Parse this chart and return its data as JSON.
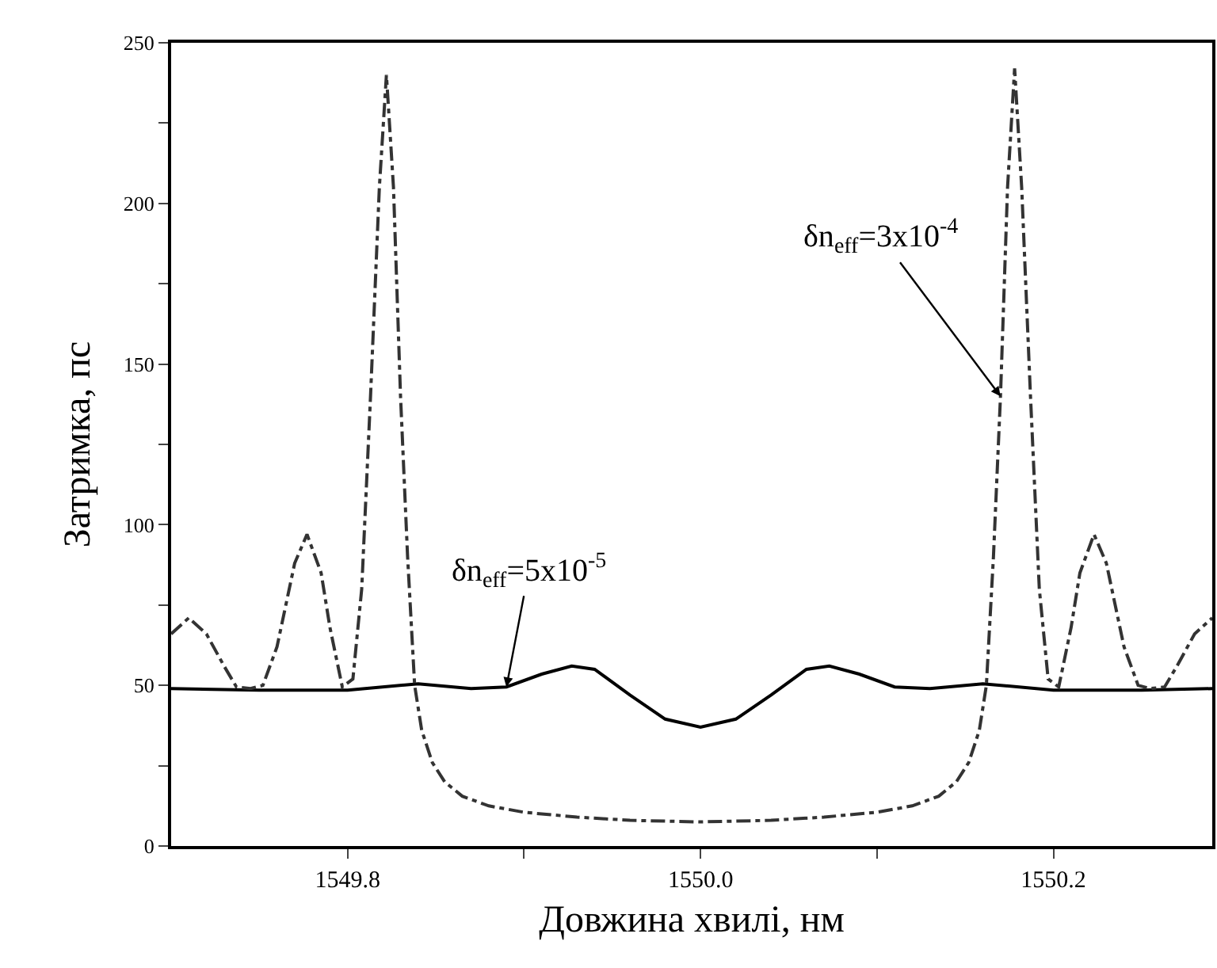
{
  "chart_data": {
    "type": "line",
    "xlabel": "Довжина хвилі, нм",
    "ylabel": "Затримка, пс",
    "xlim": [
      1549.7,
      1550.29
    ],
    "ylim": [
      0,
      250
    ],
    "xticks": [
      1549.8,
      {
        "value": 1549.9,
        "label": null
      },
      {
        "value": 1550,
        "label": "1550.0"
      },
      {
        "value": 1550.1,
        "label": null
      },
      1550.2
    ],
    "yticks": [
      0,
      {
        "value": 25,
        "label": null
      },
      50,
      {
        "value": 75,
        "label": null
      },
      100,
      {
        "value": 125,
        "label": null
      },
      150,
      {
        "value": 175,
        "label": null
      },
      200,
      {
        "value": 225,
        "label": null
      },
      250
    ],
    "grid": false,
    "marker": "none",
    "series": [
      {
        "color": "#000000",
        "line_style": "solid",
        "x": [
          1549.7,
          1549.75,
          1549.8,
          1549.84,
          1549.87,
          1549.89,
          1549.91,
          1549.927,
          1549.94,
          1549.96,
          1549.98,
          1550.0,
          1550.02,
          1550.04,
          1550.06,
          1550.073,
          1550.09,
          1550.11,
          1550.13,
          1550.16,
          1550.2,
          1550.25,
          1550.29
        ],
        "values": [
          49,
          48.5,
          48.5,
          50.5,
          49,
          49.5,
          53.5,
          56,
          55,
          47,
          39.5,
          37,
          39.5,
          47,
          55,
          56,
          53.5,
          49.5,
          49,
          50.5,
          48.5,
          48.5,
          49
        ]
      },
      {
        "color": "#333333",
        "line_style": "dashdot",
        "x": [
          1549.7,
          1549.71,
          1549.72,
          1549.73,
          1549.737,
          1549.745,
          1549.752,
          1549.76,
          1549.77,
          1549.777,
          1549.785,
          1549.79,
          1549.797,
          1549.803,
          1549.808,
          1549.813,
          1549.818,
          1549.822,
          1549.826,
          1549.83,
          1549.834,
          1549.838,
          1549.842,
          1549.848,
          1549.855,
          1549.865,
          1549.88,
          1549.9,
          1549.93,
          1549.96,
          1550.0,
          1550.04,
          1550.07,
          1550.1,
          1550.12,
          1550.135,
          1550.145,
          1550.152,
          1550.158,
          1550.162,
          1550.166,
          1550.17,
          1550.174,
          1550.178,
          1550.182,
          1550.187,
          1550.192,
          1550.197,
          1550.203,
          1550.21,
          1550.215,
          1550.223,
          1550.23,
          1550.24,
          1550.248,
          1550.255,
          1550.263,
          1550.27,
          1550.28,
          1550.29
        ],
        "values": [
          66,
          71,
          66,
          56,
          49.5,
          49,
          50,
          62,
          88,
          97,
          85,
          68,
          49.5,
          52,
          80,
          140,
          205,
          240,
          205,
          140,
          90,
          50,
          36,
          26,
          20,
          15.5,
          12.5,
          10.5,
          9,
          8,
          7.5,
          8,
          9,
          10.5,
          12.5,
          15.5,
          20,
          26,
          36,
          50,
          90,
          140,
          205,
          242,
          205,
          140,
          80,
          52,
          49.5,
          68,
          85,
          97,
          88,
          62,
          50,
          49,
          49.5,
          56,
          66,
          71
        ]
      }
    ],
    "annotations": [
      {
        "text": "δn$_{eff}$=5x10$^{-5}$",
        "x": 1549.89,
        "y": 49.5
      },
      {
        "text": "δn$_{eff}$=3x10$^{-4}$",
        "x": 1550.17,
        "y": 140
      }
    ]
  }
}
